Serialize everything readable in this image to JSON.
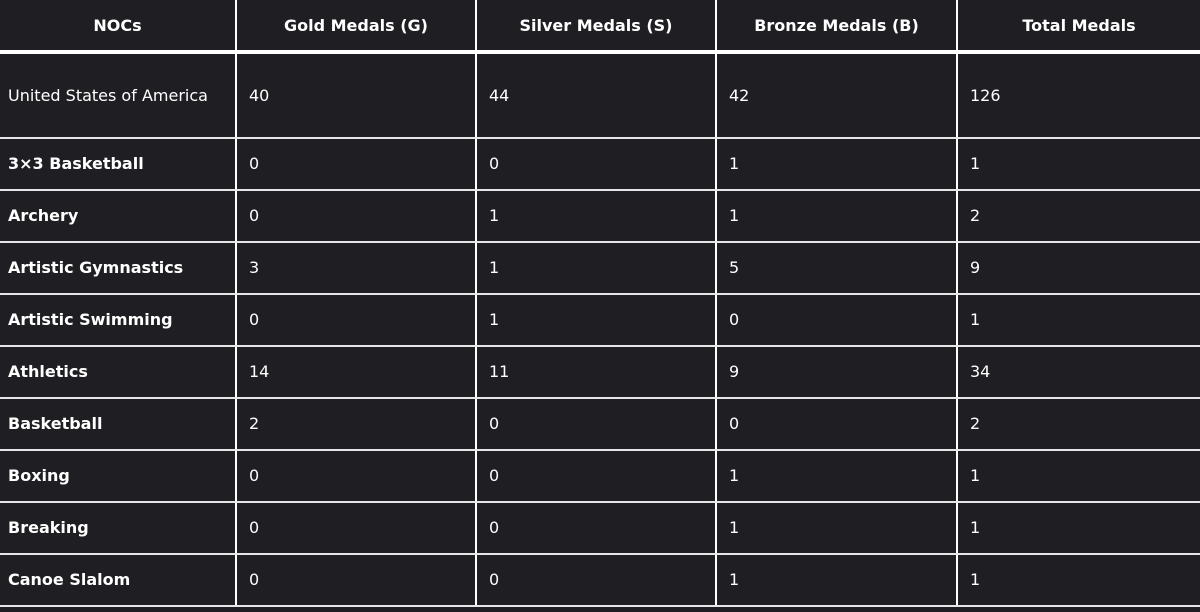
{
  "table": {
    "headers": [
      "NOCs",
      "Gold Medals (G)",
      "Silver Medals (S)",
      "Bronze Medals (B)",
      "Total Medals"
    ],
    "rows": [
      [
        "United States of America",
        "40",
        "44",
        "42",
        "126"
      ],
      [
        "3×3 Basketball",
        "0",
        "0",
        "1",
        "1"
      ],
      [
        "Archery",
        "0",
        "1",
        "1",
        "2"
      ],
      [
        "Artistic Gymnastics",
        "3",
        "1",
        "5",
        "9"
      ],
      [
        "Artistic Swimming",
        "0",
        "1",
        "0",
        "1"
      ],
      [
        "Athletics",
        "14",
        "11",
        "9",
        "34"
      ],
      [
        "Basketball",
        "2",
        "0",
        "0",
        "2"
      ],
      [
        "Boxing",
        "0",
        "0",
        "1",
        "1"
      ],
      [
        "Breaking",
        "0",
        "0",
        "1",
        "1"
      ],
      [
        "Canoe Slalom",
        "0",
        "0",
        "1",
        "1"
      ]
    ]
  },
  "colors": {
    "background": "#1f1f23",
    "text": "#ffffff",
    "gridline": "#ffffff"
  }
}
